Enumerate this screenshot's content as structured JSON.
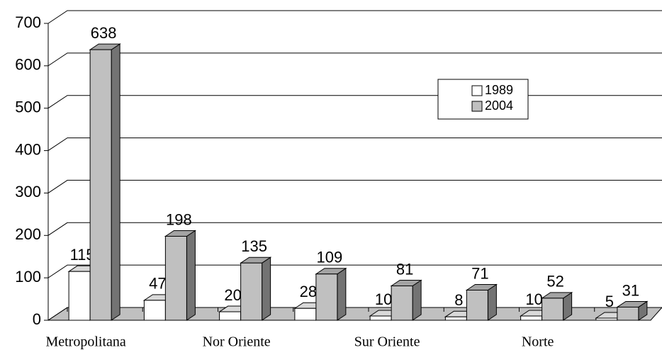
{
  "chart_data": {
    "type": "bar3d",
    "categories": [
      "Metropolitana",
      null,
      "Nor Oriente",
      null,
      "Sur Oriente",
      null,
      "Norte",
      null
    ],
    "series": [
      {
        "name": "1989",
        "color": "#ffffff",
        "values": [
          115,
          47,
          20,
          28,
          10,
          8,
          10,
          5
        ]
      },
      {
        "name": "2004",
        "color": "#c0c0c0",
        "values": [
          638,
          198,
          135,
          109,
          81,
          71,
          52,
          31
        ]
      }
    ],
    "ylim": [
      0,
      700
    ],
    "yticks": [
      0,
      100,
      200,
      300,
      400,
      500,
      600,
      700
    ],
    "grid": true,
    "legend": "upper-right"
  }
}
